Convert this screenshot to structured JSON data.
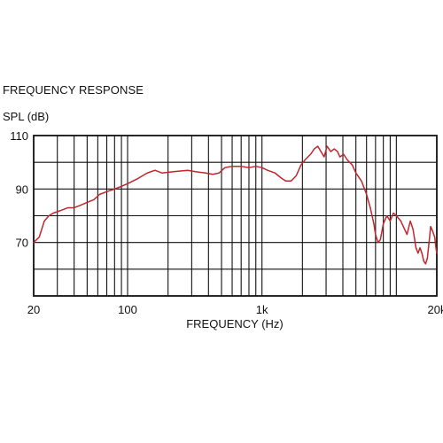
{
  "chart_data": {
    "type": "line",
    "title": "FREQUENCY RESPONSE",
    "ylabel": "SPL (dB)",
    "xlabel": "FREQUENCY (Hz)",
    "x_scale": "log",
    "xlim": [
      20,
      20000
    ],
    "ylim": [
      50,
      110
    ],
    "grid": true,
    "x_ticks": [
      {
        "value": 20,
        "label": "20"
      },
      {
        "value": 100,
        "label": "100"
      },
      {
        "value": 1000,
        "label": "1k"
      },
      {
        "value": 20000,
        "label": "20k"
      }
    ],
    "y_ticks": [
      {
        "value": 110,
        "label": "110"
      },
      {
        "value": 90,
        "label": "90"
      },
      {
        "value": 70,
        "label": "70"
      }
    ],
    "series": [
      {
        "color": "#c0262d",
        "points": [
          [
            20,
            70
          ],
          [
            22,
            72
          ],
          [
            24,
            78
          ],
          [
            26,
            80
          ],
          [
            28,
            81
          ],
          [
            32,
            82
          ],
          [
            36,
            83
          ],
          [
            40,
            83
          ],
          [
            45,
            84
          ],
          [
            50,
            85
          ],
          [
            56,
            86
          ],
          [
            62,
            88
          ],
          [
            70,
            89
          ],
          [
            80,
            90
          ],
          [
            90,
            91
          ],
          [
            100,
            92
          ],
          [
            120,
            94
          ],
          [
            140,
            96
          ],
          [
            160,
            97
          ],
          [
            180,
            96
          ],
          [
            220,
            96.5
          ],
          [
            280,
            97
          ],
          [
            320,
            96.5
          ],
          [
            380,
            96
          ],
          [
            430,
            95.5
          ],
          [
            480,
            96
          ],
          [
            530,
            98
          ],
          [
            600,
            98.5
          ],
          [
            700,
            98.5
          ],
          [
            800,
            98
          ],
          [
            900,
            98.5
          ],
          [
            1000,
            98
          ],
          [
            1100,
            97
          ],
          [
            1250,
            96
          ],
          [
            1400,
            94
          ],
          [
            1500,
            93
          ],
          [
            1650,
            93
          ],
          [
            1800,
            95
          ],
          [
            1950,
            99
          ],
          [
            2100,
            101
          ],
          [
            2300,
            103
          ],
          [
            2450,
            105
          ],
          [
            2600,
            106
          ],
          [
            2750,
            104
          ],
          [
            2900,
            102
          ],
          [
            3050,
            106
          ],
          [
            3250,
            104
          ],
          [
            3450,
            105
          ],
          [
            3650,
            104
          ],
          [
            3800,
            102
          ],
          [
            4050,
            103
          ],
          [
            4300,
            101
          ],
          [
            4700,
            99
          ],
          [
            5000,
            96
          ],
          [
            5500,
            93
          ],
          [
            6000,
            88
          ],
          [
            6400,
            83
          ],
          [
            6800,
            77
          ],
          [
            7000,
            73
          ],
          [
            7300,
            70
          ],
          [
            7600,
            71
          ],
          [
            8000,
            77
          ],
          [
            8500,
            80
          ],
          [
            9000,
            78
          ],
          [
            9500,
            81
          ],
          [
            10000,
            80
          ],
          [
            10800,
            78
          ],
          [
            11500,
            75
          ],
          [
            12000,
            73
          ],
          [
            12700,
            78
          ],
          [
            13300,
            75
          ],
          [
            14000,
            68
          ],
          [
            14500,
            66
          ],
          [
            15000,
            68
          ],
          [
            15500,
            66
          ],
          [
            16000,
            63
          ],
          [
            16500,
            62
          ],
          [
            17000,
            64
          ],
          [
            17600,
            71
          ],
          [
            18000,
            76
          ],
          [
            18700,
            74
          ],
          [
            19300,
            72
          ],
          [
            19700,
            68
          ],
          [
            20000,
            66
          ]
        ]
      }
    ]
  }
}
